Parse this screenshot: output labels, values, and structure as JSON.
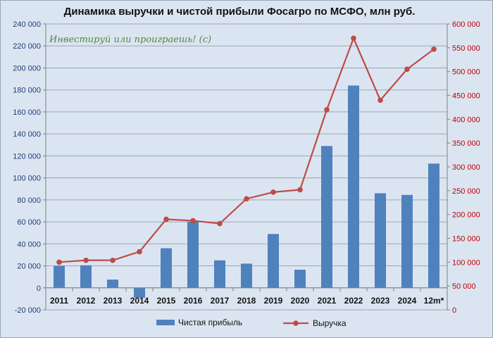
{
  "chart_data": {
    "type": "bar",
    "title": "Динамика выручки и чистой прибыли Фосагро по МСФО, млн руб.",
    "categories": [
      "2011",
      "2012",
      "2013",
      "2014",
      "2015",
      "2016",
      "2017",
      "2018",
      "2019",
      "2020",
      "2021",
      "2022",
      "2023",
      "2024",
      "12m*"
    ],
    "series": [
      {
        "name": "Чистая прибыль",
        "type": "bar",
        "axis": "left",
        "color": "#4f81bd",
        "values": [
          20000,
          20500,
          7500,
          -9000,
          36000,
          60000,
          25000,
          22000,
          49000,
          16500,
          129000,
          184000,
          86000,
          84500,
          113000
        ]
      },
      {
        "name": "Выручка",
        "type": "line",
        "axis": "right",
        "color": "#be4b48",
        "values": [
          100000,
          104000,
          104000,
          122000,
          190000,
          187000,
          181000,
          233000,
          247000,
          252000,
          420000,
          570000,
          440000,
          505000,
          547000
        ]
      }
    ],
    "y_left": {
      "min": -20000,
      "max": 240000,
      "step": 20000,
      "tick_labels": [
        "-20 000",
        "0",
        "20 000",
        "40 000",
        "60 000",
        "80 000",
        "100 000",
        "120 000",
        "140 000",
        "160 000",
        "180 000",
        "200 000",
        "220 000",
        "240 000"
      ]
    },
    "y_right": {
      "min": 0,
      "max": 600000,
      "step": 50000,
      "tick_labels": [
        "0",
        "50 000",
        "100 000",
        "150 000",
        "200 000",
        "250 000",
        "300 000",
        "350 000",
        "400 000",
        "450 000",
        "500 000",
        "550 000",
        "600 000"
      ]
    },
    "grid": true,
    "legend_position": "bottom"
  },
  "watermark": "Инвестируй или проиграешь! (с)"
}
